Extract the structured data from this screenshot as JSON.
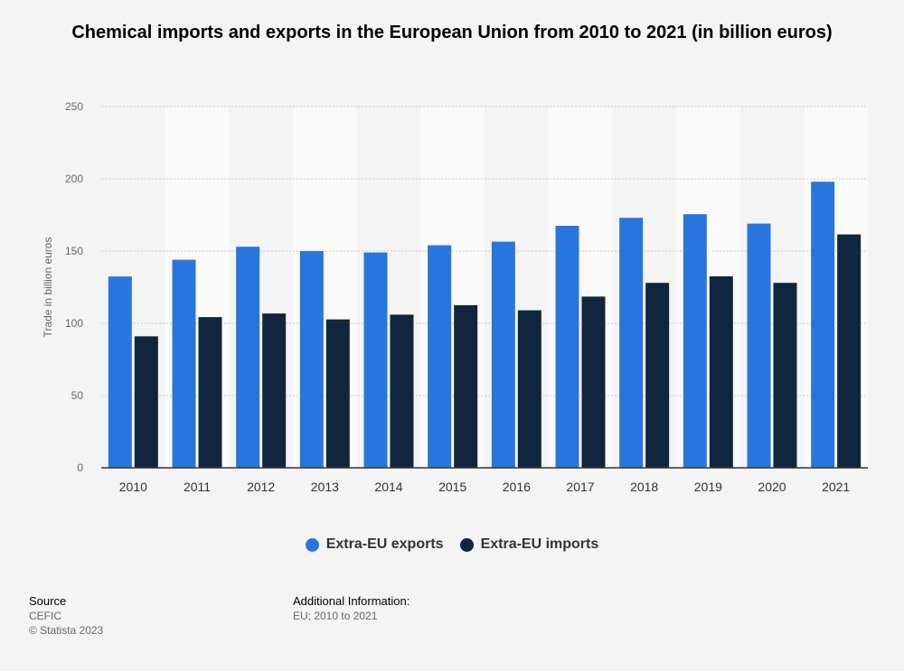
{
  "chart_data": {
    "type": "bar",
    "title": "Chemical imports and exports in the European Union from 2010 to 2021 (in billion euros)",
    "xlabel": "",
    "ylabel": "Trade in billion euros",
    "ylim": [
      0,
      250
    ],
    "yticks": [
      0,
      50,
      100,
      150,
      200,
      250
    ],
    "grid": true,
    "legend_position": "bottom-center",
    "categories": [
      "2010",
      "2011",
      "2012",
      "2013",
      "2014",
      "2015",
      "2016",
      "2017",
      "2018",
      "2019",
      "2020",
      "2021"
    ],
    "series": [
      {
        "name": "Extra-EU exports",
        "color": "#2876dd",
        "values": [
          132.4,
          144,
          153,
          150,
          149,
          154,
          156.5,
          167.5,
          173,
          175.5,
          169,
          198
        ]
      },
      {
        "name": "Extra-EU imports",
        "color": "#10263f",
        "values": [
          91,
          104.3,
          106.8,
          102.7,
          106,
          112.5,
          109,
          118.5,
          128,
          132.5,
          128,
          161.5
        ]
      }
    ]
  },
  "footer": {
    "source_label": "Source",
    "source_text": "CEFIC",
    "copyright": "© Statista 2023",
    "additional_label": "Additional Information:",
    "additional_text": "EU; 2010 to 2021"
  },
  "colors": {
    "background": "#f4f4f4",
    "band": "#fafafa",
    "grid": "#cccccc",
    "axis": "#333333"
  }
}
